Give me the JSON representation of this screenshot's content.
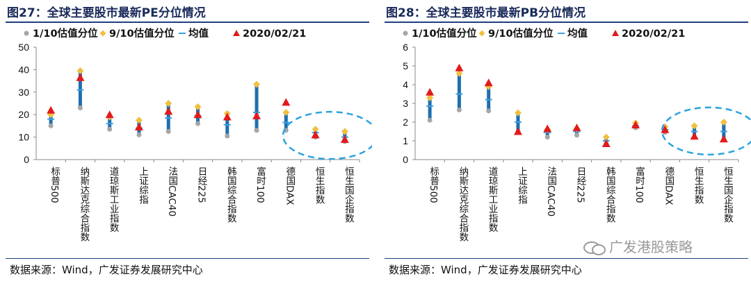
{
  "left": {
    "fig_num": "图27",
    "title": "：全球主要股市最新PE分位情况",
    "source": "数据来源：Wind，广发证券发展研究中心"
  },
  "right": {
    "fig_num": "图28",
    "title": "：全球主要股市最新PB分位情况",
    "source": "数据来源：Wind，广发证券发展研究中心"
  },
  "watermark": "广发港股策略",
  "colors": {
    "bar": "#1f6fae",
    "p10": "#a6a6a6",
    "p90": "#f0c040",
    "mean": "#3fa0e0",
    "latest": "#e31a1c",
    "highlight": "#2aa3df",
    "title": "#1a2a5a"
  },
  "chart_data": [
    {
      "type": "scatter",
      "title": "全球主要股市最新PE分位情况",
      "legend": [
        "1/10估值分位",
        "9/10估值分位",
        "均值",
        "2020/02/21"
      ],
      "legend_position": "top",
      "categories": [
        "标普500",
        "纳斯达克综合指数",
        "道琼斯工业指数",
        "上证综指",
        "法国CAC40",
        "日经225",
        "韩国综合指数",
        "富时100",
        "德国DAX",
        "恒生指数",
        "恒生国企指数"
      ],
      "ylim": [
        0,
        50
      ],
      "yticks": [
        "0",
        "10",
        "20",
        "30",
        "40",
        "50"
      ],
      "series": [
        {
          "name": "1/10估值分位",
          "values": [
            15,
            23,
            13.5,
            11,
            12.5,
            16,
            10.5,
            13,
            13,
            10,
            8
          ]
        },
        {
          "name": "9/10估值分位",
          "values": [
            20,
            39.5,
            19,
            17.5,
            25,
            23.5,
            20.5,
            33.5,
            21,
            13.5,
            12.5
          ]
        },
        {
          "name": "均值",
          "values": [
            18,
            31,
            16,
            14,
            18.5,
            19.5,
            15.5,
            21,
            16.5,
            12,
            10
          ]
        },
        {
          "name": "2020/02/21",
          "values": [
            22,
            36.5,
            20,
            14.5,
            21.5,
            20,
            19,
            19.5,
            25.5,
            11,
            9
          ]
        }
      ],
      "highlight_categories": [
        "恒生指数",
        "恒生国企指数"
      ]
    },
    {
      "type": "scatter",
      "title": "全球主要股市最新PB分位情况",
      "legend": [
        "1/10估值分位",
        "9/10估值分位",
        "均值",
        "2020/02/21"
      ],
      "legend_position": "top",
      "categories": [
        "标普500",
        "纳斯达克综合指数",
        "道琼斯工业指数",
        "上证综指",
        "法国CAC40",
        "日经225",
        "韩国综合指数",
        "富时100",
        "德国DAX",
        "恒生指数",
        "恒生国企指数"
      ],
      "ylim": [
        0,
        6
      ],
      "yticks": [
        "0",
        "1",
        "2",
        "3",
        "4",
        "5",
        "6"
      ],
      "series": [
        {
          "name": "1/10估值分位",
          "values": [
            2.1,
            2.65,
            2.6,
            1.5,
            1.2,
            1.3,
            0.85,
            1.7,
            1.45,
            1.2,
            1.05
          ]
        },
        {
          "name": "9/10估值分位",
          "values": [
            3.3,
            4.6,
            3.9,
            2.5,
            1.6,
            1.65,
            1.2,
            1.95,
            1.75,
            1.8,
            2.0
          ]
        },
        {
          "name": "均值",
          "values": [
            2.85,
            3.5,
            3.2,
            2.0,
            1.45,
            1.5,
            1.0,
            1.8,
            1.6,
            1.5,
            1.5
          ]
        },
        {
          "name": "2020/02/21",
          "values": [
            3.6,
            4.9,
            4.1,
            1.5,
            1.65,
            1.7,
            0.85,
            1.85,
            1.6,
            1.25,
            1.1
          ]
        }
      ],
      "highlight_categories": [
        "恒生指数",
        "恒生国企指数"
      ]
    }
  ]
}
